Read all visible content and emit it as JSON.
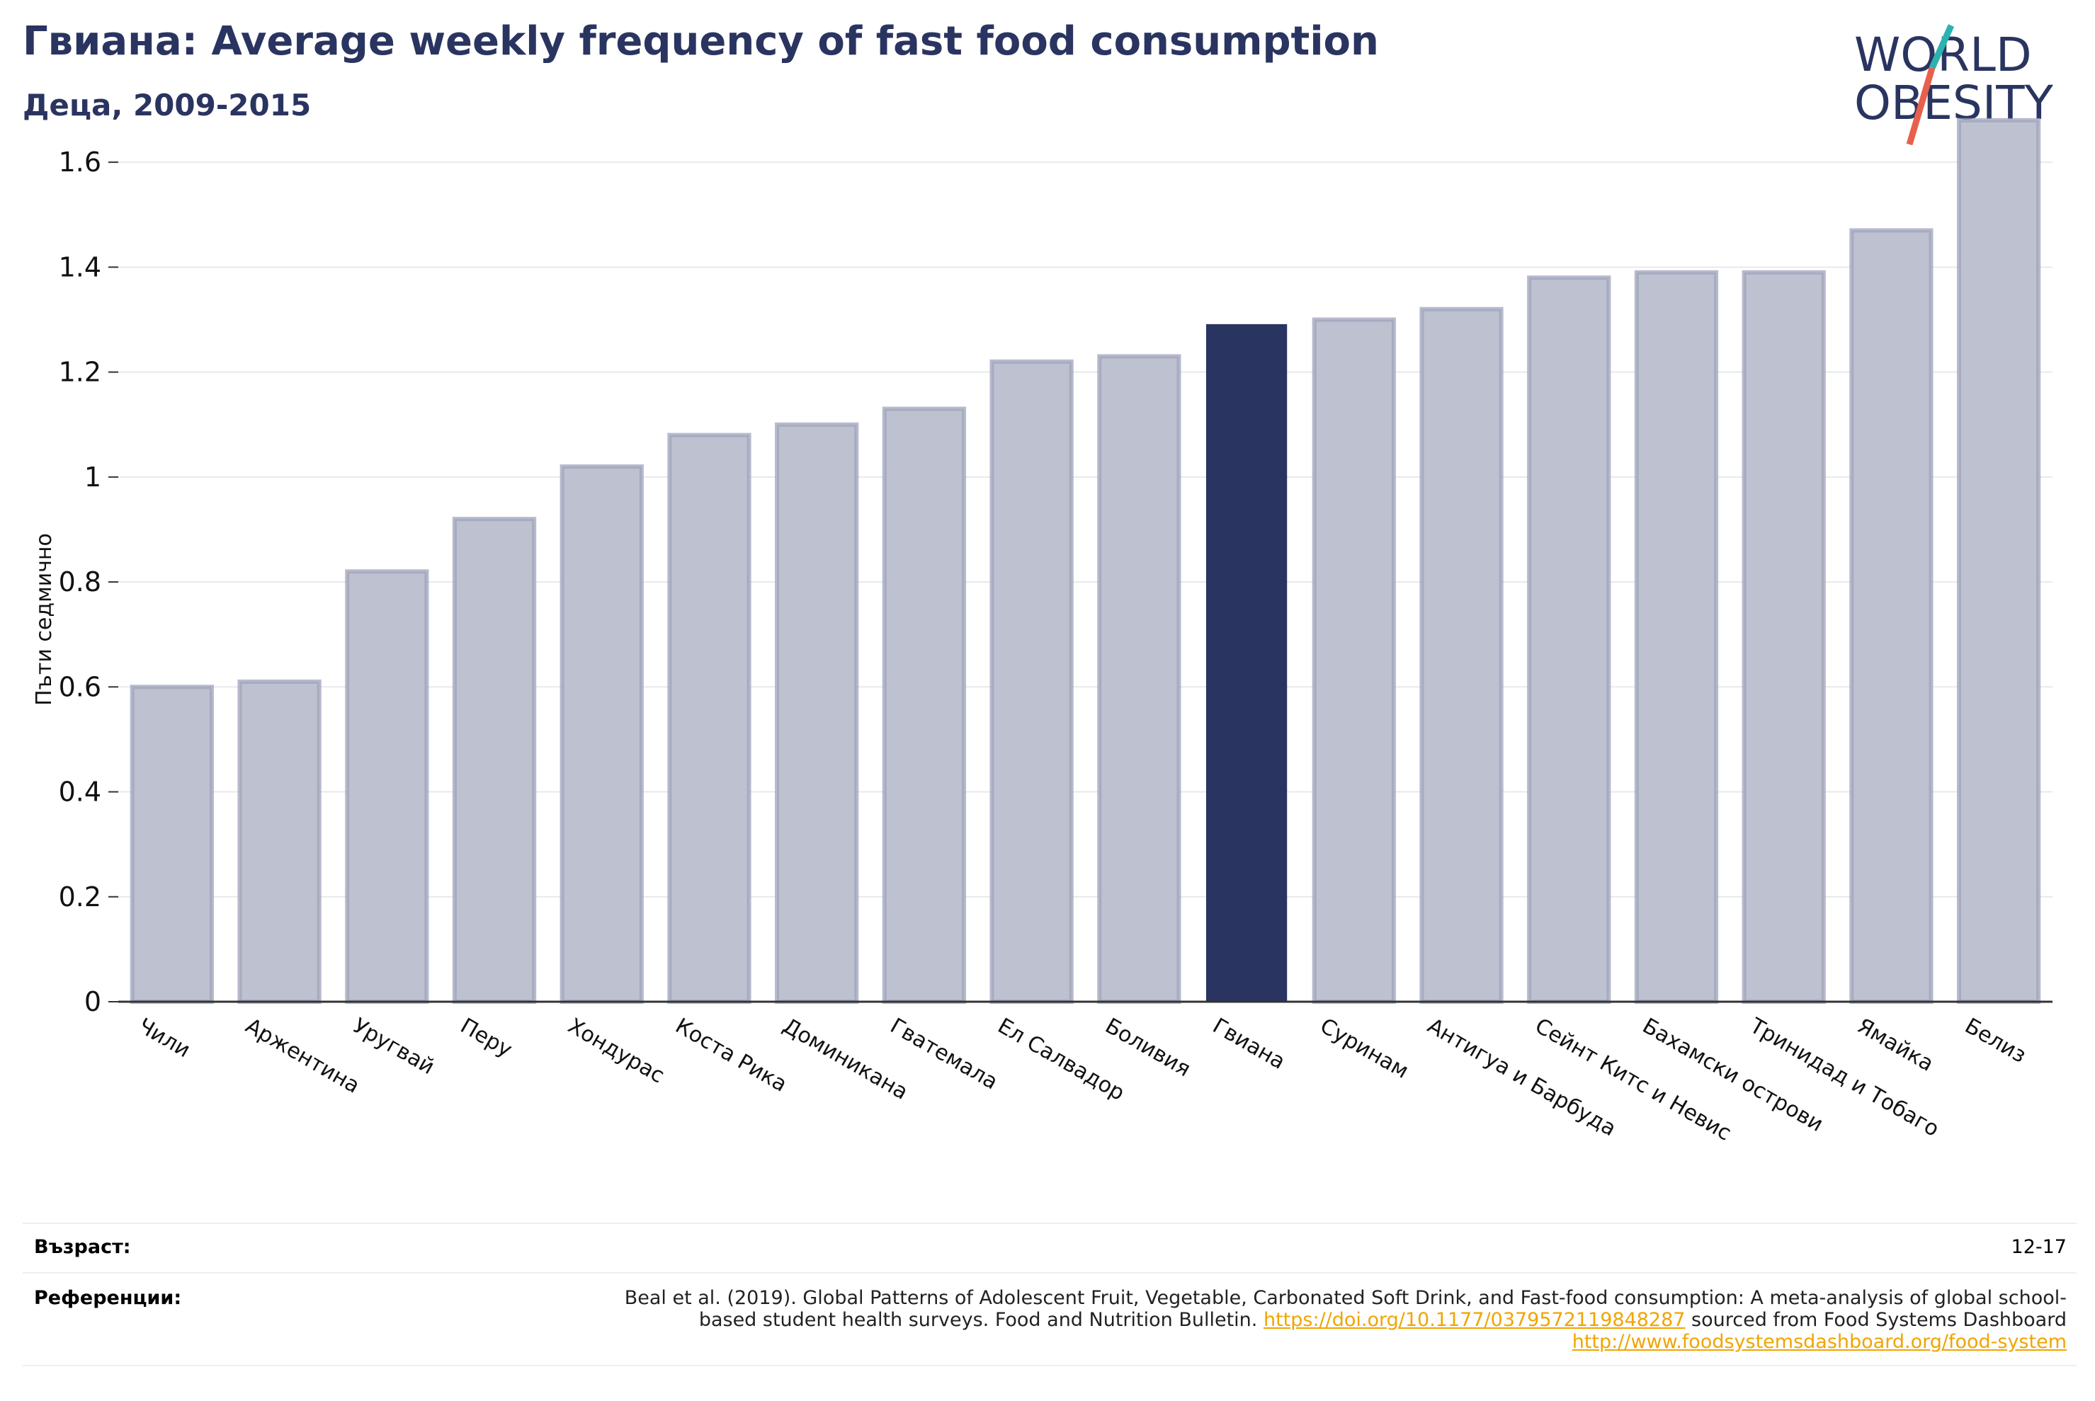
{
  "header": {
    "title": "Гвиана: Average weekly frequency of fast food consumption",
    "subtitle": "Деца, 2009-2015"
  },
  "logo": {
    "line1": "WORLD",
    "line2": "OBESITY",
    "colors": {
      "text": "#2a3460",
      "slash_top": "#2cb3b0",
      "slash_bottom": "#e8604c"
    }
  },
  "chart_data": {
    "type": "bar",
    "ylabel": "Пъти седмично",
    "xlabel": "",
    "ylim": [
      0,
      1.7
    ],
    "yticks": [
      0,
      0.2,
      0.4,
      0.6,
      0.8,
      1,
      1.2,
      1.4,
      1.6
    ],
    "ytick_labels": [
      "0",
      "0.2",
      "0.4",
      "0.6",
      "0.8",
      "1",
      "1.2",
      "1.4",
      "1.6"
    ],
    "grid": true,
    "categories": [
      "Чили",
      "Аржентина",
      "Уругвай",
      "Перу",
      "Хондурас",
      "Коста Рика",
      "Доминикана",
      "Гватемала",
      "Ел Салвадор",
      "Боливия",
      "Гвиана",
      "Суринам",
      "Антигуа и Барбуда",
      "Сейнт Китс и Невис",
      "Бахамски острови",
      "Тринидад и Тобаго",
      "Ямайка",
      "Белиз"
    ],
    "values": [
      0.6,
      0.61,
      0.82,
      0.92,
      1.02,
      1.08,
      1.1,
      1.13,
      1.22,
      1.23,
      1.29,
      1.3,
      1.32,
      1.38,
      1.39,
      1.39,
      1.47,
      1.68
    ],
    "highlight": "Гвиана",
    "colors": {
      "bar": "#bec1cf",
      "bar_edge": "#9da3bb",
      "highlight": "#2a3460",
      "grid": "#e8e9ee",
      "axis": "#333333"
    }
  },
  "footer": {
    "age_label": "Възраст:",
    "age_value": "12-17",
    "ref_label": "Референции:",
    "ref_text_1": "Beal et al. (2019). Global Patterns of Adolescent Fruit, Vegetable, Carbonated Soft Drink, and Fast-food consumption: A meta-analysis of global school-based student health surveys. Food and Nutrition Bulletin. ",
    "ref_link_1": "https://doi.org/10.1177/0379572119848287",
    "ref_text_2": " sourced from Food Systems Dashboard ",
    "ref_link_2": "http://www.foodsystemsdashboard.org/food-system"
  }
}
